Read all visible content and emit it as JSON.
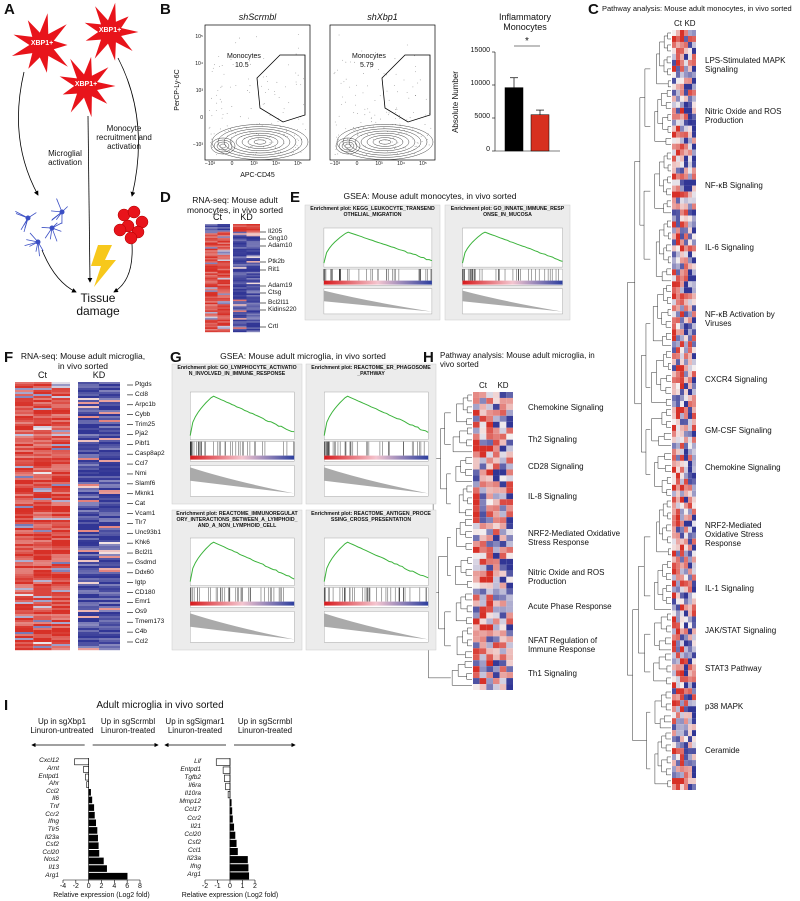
{
  "panels": {
    "A": {
      "letter": "A",
      "cells": [
        "XBP1+",
        "XBP1+",
        "XBP1+"
      ],
      "microglia_label": "Microglial activation",
      "monocyte_label": "Monocyte recruitment and activation",
      "outcome": "Tissue damage"
    },
    "B": {
      "letter": "B",
      "flow_plots": [
        {
          "title": "shScrmbl",
          "gate_label": "Monocytes",
          "gate_value": 10.5
        },
        {
          "title": "shXbp1",
          "gate_label": "Monocytes",
          "gate_value": 5.79
        }
      ],
      "y_label": "PerCP-Ly-6C",
      "x_label": "APC-CD45",
      "y_ticks": [
        "10⁵",
        "10⁴",
        "10³",
        "0",
        "−10³"
      ],
      "x_ticks": [
        "−10³",
        "0",
        "10³",
        "10⁴",
        "10⁵"
      ]
    },
    "C": {
      "letter": "C",
      "title": "Pathway analysis: Mouse adult monocytes, in vivo sorted",
      "columns": [
        "Ct",
        "KD"
      ],
      "pathways": [
        "LPS-Stimulated MAPK Signaling",
        "Nitric Oxide and ROS Production",
        "NF-κB Signaling",
        "IL-6 Signaling",
        "NF-κB Activation by Viruses",
        "CXCR4 Signaling",
        "GM-CSF Signaling",
        "Chemokine Signaling",
        "NRF2-Mediated Oxidative Stress Response",
        "IL-1 Signaling",
        "JAK/STAT Signaling",
        "STAT3 Pathway",
        "p38 MAPK",
        "Ceramide"
      ]
    },
    "D": {
      "letter": "D",
      "title": "RNA-seq: Mouse adult monocytes, in vivo sorted",
      "columns": [
        "Ct",
        "KD"
      ],
      "genes": [
        "Il205",
        "Gng10",
        "Adam10",
        "Ptk2b",
        "Rit1",
        "Adam19",
        "Ctsg",
        "Bcl2l11",
        "Kidins220",
        "Crtl"
      ]
    },
    "E": {
      "letter": "E",
      "title": "GSEA: Mouse adult monocytes, in vivo sorted",
      "plots": [
        "Enrichment plot: KEGG_LEUKOCYTE_TRANSENDOTHELIAL_MIGRATION",
        "Enrichment plot: GO_INNATE_IMMUNE_RESPONSE_IN_MUCOSA"
      ]
    },
    "F": {
      "letter": "F",
      "title": "RNA-seq: Mouse adult microglia, in vivo sorted",
      "columns": [
        "Ct",
        "KD"
      ],
      "genes": [
        "Ptgds",
        "Ccl8",
        "Arpc1b",
        "Cybb",
        "Trim25",
        "Pja2",
        "Pibf1",
        "Casp8ap2",
        "Ccl7",
        "Nmi",
        "Slamf6",
        "Mknk1",
        "Cat",
        "Vcam1",
        "Tlr7",
        "Unc93b1",
        "Khk6",
        "Bcl2l1",
        "Gsdmd",
        "Ddx60",
        "Igtp",
        "CD180",
        "Emr1",
        "Os9",
        "Tmem173",
        "C4b",
        "Ccl2"
      ]
    },
    "G": {
      "letter": "G",
      "title": "GSEA: Mouse adult microglia, in vivo sorted",
      "plots": [
        "Enrichment plot: GO_LYMPHOCYTE_ACTIVATION_INVOLVED_IN_IMMUNE_RESPONSE",
        "Enrichment plot: REACTOME_ER_PHAGOSOME_PATHWAY",
        "Enrichment plot: REACTOME_IMMUNOREGULATORY_INTERACTIONS_BETWEEN_A_LYMPHOID_AND_A_NON_LYMPHOID_CELL",
        "Enrichment plot: REACTOME_ANTIGEN_PROCESSING_CROSS_PRESENTATION"
      ]
    },
    "H": {
      "letter": "H",
      "title": "Pathway analysis: Mouse adult microglia, in vivo sorted",
      "columns": [
        "Ct",
        "KD"
      ],
      "pathways": [
        "Chemokine Signaling",
        "Th2 Signaling",
        "CD28 Signaling",
        "IL-8 Signaling",
        "NRF2-Mediated Oxidative Stress Response",
        "Nitric Oxide and ROS Production",
        "Acute Phase Response",
        "NFAT Regulation of Immune Response",
        "Th1 Signaling"
      ]
    },
    "I": {
      "letter": "I",
      "title": "Adult microglia in vivo sorted"
    }
  },
  "chart_data": [
    {
      "type": "bar",
      "title": "Inflammatory Monocytes",
      "y_label": "Absolute Number",
      "categories": [
        null,
        null
      ],
      "values": [
        9600,
        5500
      ],
      "errors": [
        1500,
        700
      ],
      "colors": [
        "#000000",
        "#d7301f"
      ],
      "ylim": [
        0,
        15000
      ],
      "yticks": [
        0,
        5000,
        10000,
        15000
      ],
      "annotation": "*"
    },
    {
      "type": "barh",
      "left_label": "Up in sgXbp1 Linuron-untreated",
      "right_label": "Up in sgScrmbl Linuron-treated",
      "x_label": "Relative expression (Log2 fold)",
      "categories": [
        "Cxcl12",
        "Arnt",
        "Entpd1",
        "Ahr",
        "Ccl2",
        "Il6",
        "Tnf",
        "Ccr2",
        "Ifng",
        "Tlr5",
        "Il23a",
        "Csf2",
        "Ccl20",
        "Nos2",
        "Il13",
        "Arg1"
      ],
      "values": [
        -2.2,
        -0.8,
        -0.5,
        -0.3,
        0.3,
        0.5,
        0.8,
        0.9,
        1.1,
        1.3,
        1.4,
        1.5,
        1.6,
        2.3,
        2.8,
        6
      ],
      "negative_color": "#ffffff",
      "positive_color": "#000000",
      "xlim": [
        -4,
        8
      ],
      "xticks": [
        -4,
        -2,
        0,
        2,
        4,
        6,
        8
      ]
    },
    {
      "type": "barh",
      "left_label": "Up in sgSigmar1 Linuron-treated",
      "right_label": "Up in sgScrmbl Linuron-treated",
      "x_label": "Relative expression (Log2 fold)",
      "categories": [
        "Lif",
        "Entpd1",
        "Tgfb2",
        "Il6ra",
        "Il10ra",
        "Mmp12",
        "Ccl17",
        "Ccr2",
        "Il21",
        "Ccl20",
        "Csf2",
        "Ccl1",
        "Il23a",
        "Ifng",
        "Arg1"
      ],
      "values": [
        -1.1,
        -0.55,
        -0.45,
        -0.35,
        -0.15,
        0.1,
        0.15,
        0.2,
        0.3,
        0.4,
        0.5,
        0.6,
        1.4,
        1.45,
        1.5
      ],
      "negative_color": "#ffffff",
      "positive_color": "#000000",
      "xlim": [
        -2,
        2
      ],
      "xticks": [
        -2,
        -1,
        0,
        1,
        2
      ]
    }
  ]
}
